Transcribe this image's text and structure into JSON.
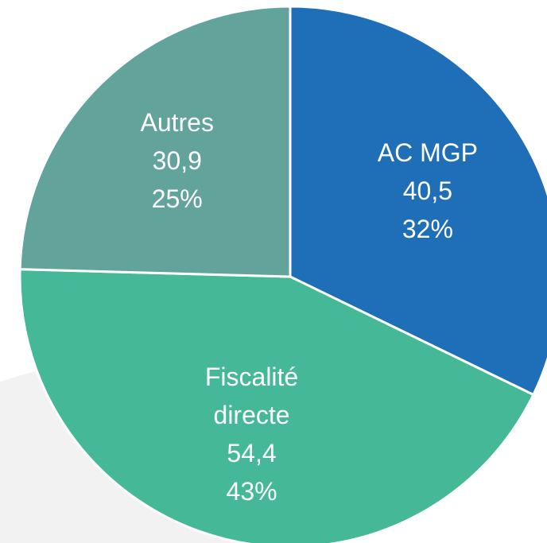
{
  "chart_data": {
    "type": "pie",
    "categories": [
      "AC MGP",
      "Fiscalité directe",
      "Autres"
    ],
    "values": [
      40.5,
      54.4,
      30.9
    ],
    "value_labels": [
      "40,5",
      "54,4",
      "30,9"
    ],
    "percents": [
      32,
      43,
      25
    ],
    "percent_labels": [
      "32%",
      "43%",
      "25%"
    ],
    "colors": [
      "#1f6fb8",
      "#45b997",
      "#62a39b"
    ]
  }
}
